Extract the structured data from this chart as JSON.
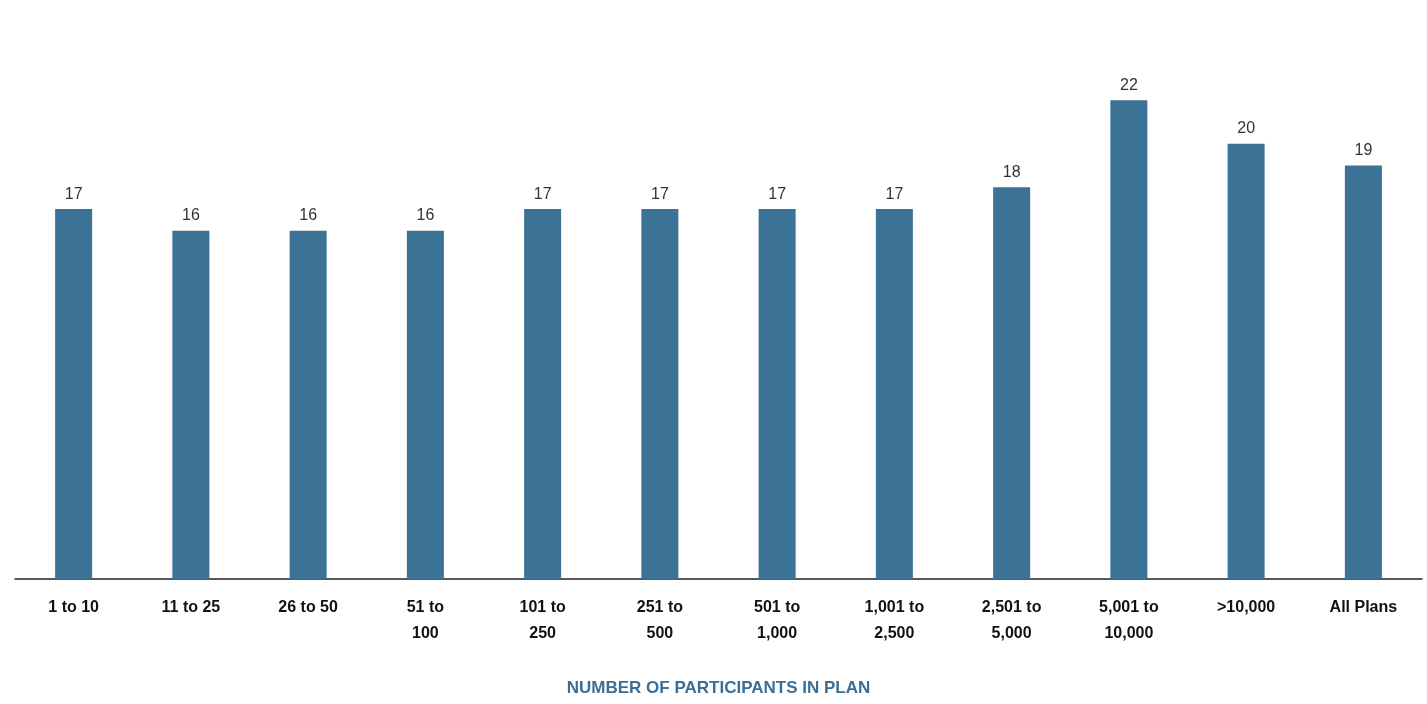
{
  "chart_data": {
    "type": "bar",
    "xlabel": "NUMBER OF PARTICIPANTS IN PLAN",
    "categories": [
      "1 to 10",
      "11 to 25",
      "26 to 50",
      "51 to 100",
      "101 to 250",
      "251 to 500",
      "501 to 1,000",
      "1,001 to 2,500",
      "2,501 to 5,000",
      "5,001 to 10,000",
      ">10,000",
      "All Plans"
    ],
    "values": [
      17,
      16,
      16,
      16,
      17,
      17,
      17,
      17,
      18,
      22,
      20,
      19
    ],
    "color": "#3b7296",
    "data_labels": true,
    "tick_labels": "x"
  }
}
